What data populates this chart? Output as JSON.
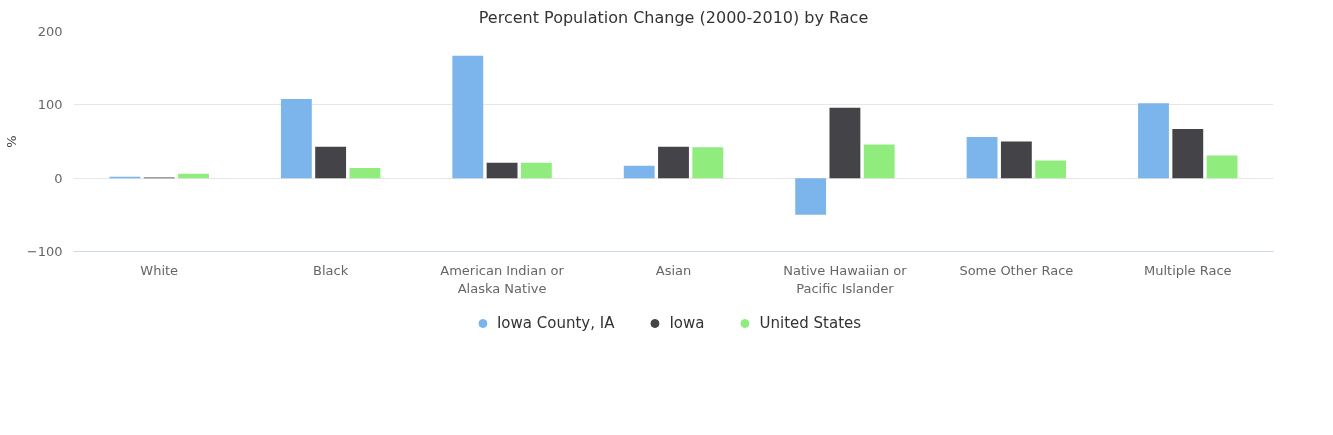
{
  "chart_data": {
    "type": "bar",
    "title": "Percent Population Change (2000-2010) by Race",
    "ylabel": "%",
    "categories": [
      "White",
      "Black",
      "American Indian or Alaska Native",
      "Asian",
      "Native Hawaiian or Pacific Islander",
      "Some Other Race",
      "Multiple Race"
    ],
    "series": [
      {
        "name": "Iowa County, IA",
        "color": "#7cb5ec",
        "values": [
          2,
          108,
          167,
          17,
          -50,
          56,
          102
        ]
      },
      {
        "name": "Iowa",
        "color": "#434348",
        "values": [
          1,
          43,
          21,
          43,
          96,
          50,
          67
        ]
      },
      {
        "name": "United States",
        "color": "#90ed7d",
        "values": [
          6,
          14,
          21,
          42,
          46,
          24,
          31
        ]
      }
    ],
    "ylim": [
      -100,
      200
    ],
    "yticks": [
      -100,
      0,
      100,
      200
    ],
    "grid": "y",
    "legend": "bottom"
  }
}
